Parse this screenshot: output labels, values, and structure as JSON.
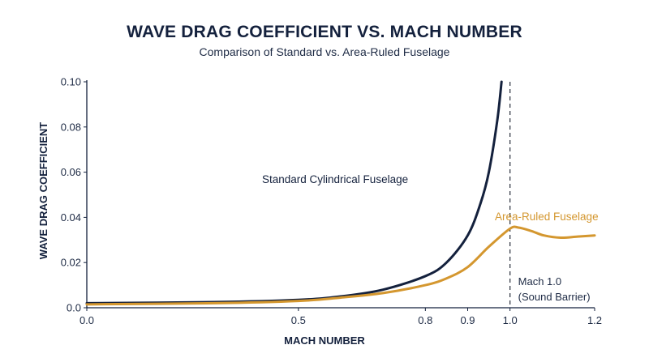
{
  "chart_data": {
    "type": "line",
    "title": "WAVE DRAG COEFFICIENT VS. MACH NUMBER",
    "subtitle": "Comparison of Standard vs. Area-Ruled Fuselage",
    "xlabel": "MACH NUMBER",
    "ylabel": "WAVE DRAG COEFFICIENT",
    "xlim": [
      0.0,
      1.2
    ],
    "ylim": [
      0.0,
      0.1
    ],
    "x_ticks": [
      "0.0",
      "0.5",
      "0.8",
      "0.9",
      "1.0",
      "1.2"
    ],
    "y_ticks": [
      "0.0",
      "0.02",
      "0.04",
      "0.06",
      "0.08",
      "0.10"
    ],
    "grid": false,
    "series": [
      {
        "name": "Standard Cylindrical Fuselage",
        "color": "#14213d",
        "x": [
          0.0,
          0.3,
          0.5,
          0.6,
          0.7,
          0.8,
          0.85,
          0.9,
          0.93,
          0.95,
          0.97,
          0.98
        ],
        "y": [
          0.002,
          0.0025,
          0.0035,
          0.005,
          0.008,
          0.014,
          0.02,
          0.032,
          0.046,
          0.06,
          0.083,
          0.1
        ]
      },
      {
        "name": "Area-Ruled Fuselage",
        "color": "#d4972f",
        "x": [
          0.0,
          0.3,
          0.5,
          0.6,
          0.7,
          0.8,
          0.85,
          0.9,
          0.95,
          1.0,
          1.02,
          1.05,
          1.08,
          1.12,
          1.16,
          1.2
        ],
        "y": [
          0.0015,
          0.002,
          0.003,
          0.0045,
          0.0065,
          0.01,
          0.013,
          0.018,
          0.027,
          0.035,
          0.0355,
          0.034,
          0.032,
          0.031,
          0.0315,
          0.032
        ]
      }
    ],
    "annotations": [
      {
        "type": "vline",
        "x": 1.0,
        "style": "dashed",
        "label_lines": [
          "Mach 1.0",
          "(Sound Barrier)"
        ]
      }
    ]
  }
}
